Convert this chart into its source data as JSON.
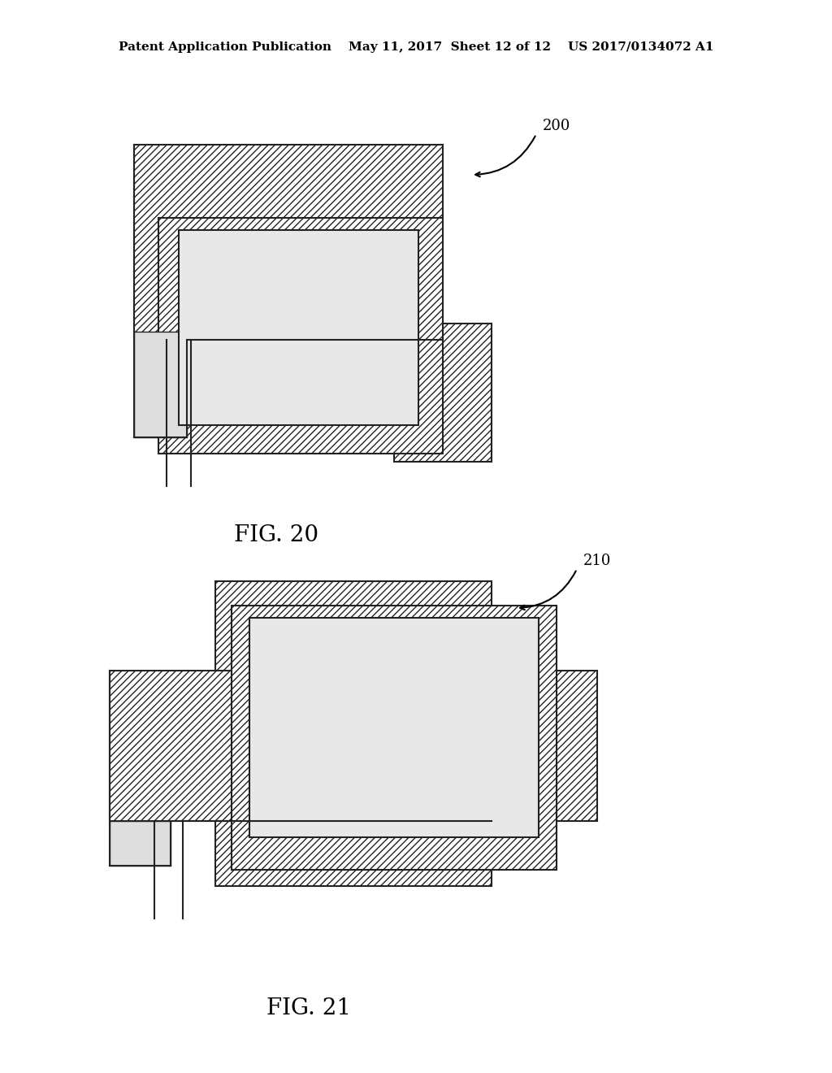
{
  "background_color": "#ffffff",
  "header_text": "Patent Application Publication    May 11, 2017  Sheet 12 of 12    US 2017/0134072 A1",
  "fig20_label": "FIG. 20",
  "fig21_label": "FIG. 21",
  "ref200": "200",
  "ref210": "210"
}
